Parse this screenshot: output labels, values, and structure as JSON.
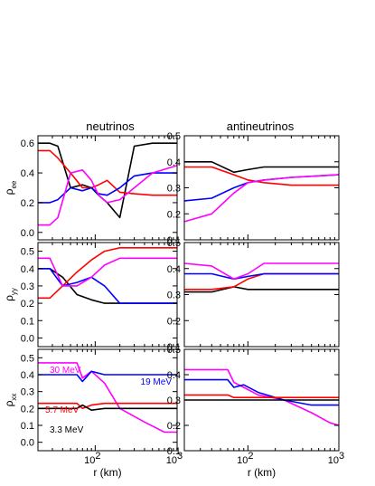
{
  "column_titles": [
    "neutrinos",
    "antineutrinos"
  ],
  "row_ylabels": [
    {
      "base": "ρ",
      "sub": "ee"
    },
    {
      "base": "ρ",
      "sub": "yy"
    },
    {
      "base": "ρ",
      "sub": "xx"
    }
  ],
  "xlabel": "r (km)",
  "x_tick_labels": [
    {
      "base": "10",
      "exp": "2"
    },
    {
      "base": "10",
      "exp": "3"
    }
  ],
  "annotations": [
    {
      "text": "30 MeV",
      "color": "#ff00ff"
    },
    {
      "text": "19 MeV",
      "color": "#0000ff"
    },
    {
      "text": "5.7 MeV",
      "color": "#ff0000"
    },
    {
      "text": "3.3 MeV",
      "color": "#000000"
    }
  ],
  "chart_data": [
    {
      "type": "line",
      "xlabel": "r (km)",
      "ylabel": "ρ_ee",
      "title": "neutrinos",
      "xscale": "log",
      "xlim": [
        20,
        1000
      ],
      "ylim": [
        -0.05,
        0.65
      ],
      "yticks": [
        "0.0",
        "0.2",
        "0.4",
        "0.6"
      ],
      "ytickvals": [
        0,
        0.2,
        0.4,
        0.6
      ],
      "series": [
        {
          "color": "#000000",
          "x": [
            20,
            28,
            35,
            50,
            70,
            90,
            110,
            140,
            200,
            300,
            500,
            1000
          ],
          "values": [
            0.6,
            0.6,
            0.58,
            0.3,
            0.32,
            0.3,
            0.25,
            0.2,
            0.1,
            0.58,
            0.6,
            0.6
          ]
        },
        {
          "color": "#ff0000",
          "x": [
            20,
            28,
            35,
            50,
            70,
            90,
            110,
            140,
            200,
            300,
            500,
            1000
          ],
          "values": [
            0.55,
            0.55,
            0.5,
            0.4,
            0.3,
            0.3,
            0.32,
            0.35,
            0.27,
            0.26,
            0.25,
            0.25
          ]
        },
        {
          "color": "#0000ff",
          "x": [
            20,
            28,
            35,
            50,
            70,
            90,
            110,
            140,
            200,
            300,
            500,
            1000
          ],
          "values": [
            0.2,
            0.2,
            0.22,
            0.3,
            0.28,
            0.3,
            0.26,
            0.25,
            0.3,
            0.38,
            0.4,
            0.4
          ]
        },
        {
          "color": "#ff00ff",
          "x": [
            20,
            28,
            35,
            50,
            70,
            90,
            110,
            140,
            200,
            300,
            500,
            1000
          ],
          "values": [
            0.05,
            0.05,
            0.1,
            0.4,
            0.42,
            0.35,
            0.25,
            0.2,
            0.22,
            0.3,
            0.4,
            0.45
          ]
        }
      ]
    },
    {
      "type": "line",
      "xlabel": "r (km)",
      "ylabel": "ρ_ee",
      "title": "antineutrinos",
      "xscale": "log",
      "xlim": [
        20,
        1000
      ],
      "ylim": [
        0.1,
        0.5
      ],
      "yticks": [
        "0.1",
        "0.2",
        "0.3",
        "0.4",
        "0.5"
      ],
      "ytickvals": [
        0.1,
        0.2,
        0.3,
        0.4,
        0.5
      ],
      "series": [
        {
          "color": "#000000",
          "x": [
            20,
            40,
            70,
            100,
            150,
            300,
            1000
          ],
          "values": [
            0.4,
            0.4,
            0.36,
            0.37,
            0.38,
            0.38,
            0.38
          ]
        },
        {
          "color": "#ff0000",
          "x": [
            20,
            40,
            70,
            100,
            150,
            300,
            1000
          ],
          "values": [
            0.38,
            0.38,
            0.35,
            0.33,
            0.32,
            0.31,
            0.31
          ]
        },
        {
          "color": "#0000ff",
          "x": [
            20,
            40,
            70,
            100,
            150,
            300,
            1000
          ],
          "values": [
            0.25,
            0.26,
            0.3,
            0.32,
            0.33,
            0.34,
            0.35
          ]
        },
        {
          "color": "#ff00ff",
          "x": [
            20,
            40,
            70,
            100,
            150,
            300,
            1000
          ],
          "values": [
            0.17,
            0.2,
            0.28,
            0.32,
            0.33,
            0.34,
            0.35
          ]
        }
      ]
    },
    {
      "type": "line",
      "xlabel": "r (km)",
      "ylabel": "ρ_yy",
      "title": "neutrinos",
      "xscale": "log",
      "xlim": [
        20,
        1000
      ],
      "ylim": [
        -0.05,
        0.55
      ],
      "yticks": [
        "0.0",
        "0.1",
        "0.2",
        "0.3",
        "0.4",
        "0.5"
      ],
      "ytickvals": [
        0,
        0.1,
        0.2,
        0.3,
        0.4,
        0.5
      ],
      "series": [
        {
          "color": "#000000",
          "x": [
            20,
            28,
            40,
            60,
            90,
            130,
            200,
            1000
          ],
          "values": [
            0.4,
            0.4,
            0.35,
            0.25,
            0.22,
            0.2,
            0.2,
            0.2
          ]
        },
        {
          "color": "#ff0000",
          "x": [
            20,
            28,
            40,
            60,
            90,
            130,
            200,
            1000
          ],
          "values": [
            0.23,
            0.23,
            0.3,
            0.38,
            0.45,
            0.5,
            0.52,
            0.52
          ]
        },
        {
          "color": "#0000ff",
          "x": [
            20,
            28,
            40,
            60,
            90,
            130,
            200,
            1000
          ],
          "values": [
            0.4,
            0.4,
            0.3,
            0.32,
            0.35,
            0.3,
            0.2,
            0.2
          ]
        },
        {
          "color": "#ff00ff",
          "x": [
            20,
            28,
            40,
            60,
            90,
            130,
            200,
            1000
          ],
          "values": [
            0.46,
            0.46,
            0.3,
            0.3,
            0.35,
            0.42,
            0.46,
            0.46
          ]
        }
      ]
    },
    {
      "type": "line",
      "xlabel": "r (km)",
      "ylabel": "ρ_yy",
      "title": "antineutrinos",
      "xscale": "log",
      "xlim": [
        20,
        1000
      ],
      "ylim": [
        0.1,
        0.5
      ],
      "yticks": [
        "0.1",
        "0.2",
        "0.3",
        "0.4",
        "0.5"
      ],
      "ytickvals": [
        0.1,
        0.2,
        0.3,
        0.4,
        0.5
      ],
      "series": [
        {
          "color": "#000000",
          "x": [
            20,
            40,
            70,
            100,
            150,
            1000
          ],
          "values": [
            0.31,
            0.31,
            0.33,
            0.32,
            0.32,
            0.32
          ]
        },
        {
          "color": "#ff0000",
          "x": [
            20,
            40,
            70,
            100,
            150,
            1000
          ],
          "values": [
            0.32,
            0.32,
            0.33,
            0.36,
            0.38,
            0.38
          ]
        },
        {
          "color": "#0000ff",
          "x": [
            20,
            40,
            70,
            100,
            150,
            1000
          ],
          "values": [
            0.38,
            0.38,
            0.36,
            0.37,
            0.38,
            0.38
          ]
        },
        {
          "color": "#ff00ff",
          "x": [
            20,
            40,
            70,
            100,
            150,
            1000
          ],
          "values": [
            0.42,
            0.41,
            0.36,
            0.38,
            0.42,
            0.42
          ]
        }
      ]
    },
    {
      "type": "line",
      "xlabel": "r (km)",
      "ylabel": "ρ_xx",
      "title": "neutrinos",
      "xscale": "log",
      "xlim": [
        20,
        1000
      ],
      "ylim": [
        -0.05,
        0.55
      ],
      "yticks": [
        "0.0",
        "0.1",
        "0.2",
        "0.3",
        "0.4",
        "0.5"
      ],
      "ytickvals": [
        0,
        0.1,
        0.2,
        0.3,
        0.4,
        0.5
      ],
      "series": [
        {
          "color": "#ff00ff",
          "x": [
            20,
            60,
            70,
            90,
            130,
            200,
            400,
            700,
            1000
          ],
          "values": [
            0.47,
            0.47,
            0.38,
            0.42,
            0.35,
            0.2,
            0.12,
            0.06,
            0.06
          ]
        },
        {
          "color": "#0000ff",
          "x": [
            20,
            60,
            70,
            90,
            130,
            200,
            400,
            1000
          ],
          "values": [
            0.4,
            0.4,
            0.36,
            0.42,
            0.4,
            0.4,
            0.4,
            0.4
          ]
        },
        {
          "color": "#ff0000",
          "x": [
            20,
            60,
            70,
            90,
            130,
            200,
            1000
          ],
          "values": [
            0.23,
            0.23,
            0.2,
            0.22,
            0.23,
            0.23,
            0.23
          ]
        },
        {
          "color": "#000000",
          "x": [
            20,
            60,
            70,
            90,
            130,
            200,
            1000
          ],
          "values": [
            0.2,
            0.2,
            0.22,
            0.19,
            0.2,
            0.2,
            0.2
          ]
        }
      ]
    },
    {
      "type": "line",
      "xlabel": "r (km)",
      "ylabel": "ρ_xx",
      "title": "antineutrinos",
      "xscale": "log",
      "xlim": [
        20,
        1000
      ],
      "ylim": [
        0.1,
        0.5
      ],
      "yticks": [
        "0.1",
        "0.2",
        "0.3",
        "0.4",
        "0.5"
      ],
      "ytickvals": [
        0.1,
        0.2,
        0.3,
        0.4,
        0.5
      ],
      "series": [
        {
          "color": "#ff00ff",
          "x": [
            20,
            60,
            70,
            90,
            130,
            250,
            500,
            800,
            1000
          ],
          "values": [
            0.42,
            0.42,
            0.37,
            0.35,
            0.32,
            0.3,
            0.25,
            0.21,
            0.2
          ]
        },
        {
          "color": "#0000ff",
          "x": [
            20,
            60,
            70,
            90,
            130,
            250,
            500,
            1000
          ],
          "values": [
            0.38,
            0.38,
            0.35,
            0.36,
            0.33,
            0.3,
            0.28,
            0.28
          ]
        },
        {
          "color": "#ff0000",
          "x": [
            20,
            60,
            70,
            100,
            1000
          ],
          "values": [
            0.32,
            0.32,
            0.31,
            0.31,
            0.31
          ]
        },
        {
          "color": "#000000",
          "x": [
            20,
            60,
            70,
            100,
            1000
          ],
          "values": [
            0.3,
            0.3,
            0.3,
            0.3,
            0.3
          ]
        }
      ]
    }
  ]
}
